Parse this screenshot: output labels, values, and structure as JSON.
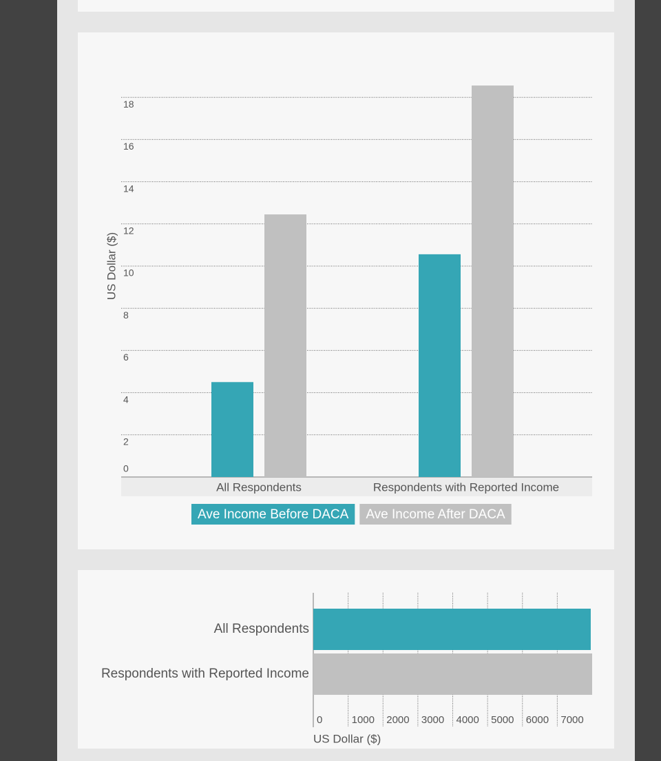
{
  "chart_data": [
    {
      "type": "bar",
      "y_label": "US Dollar ($)",
      "categories": [
        "All Respondents",
        "Respondents with Reported Income"
      ],
      "series": [
        {
          "name": "Ave Income Before DACA",
          "color": "#35a6b5",
          "values": [
            4.5,
            10.56
          ]
        },
        {
          "name": "Ave Income After DACA",
          "color": "#c0c0c0",
          "values": [
            12.45,
            18.56
          ]
        }
      ],
      "ylim": [
        0,
        19
      ],
      "yticks": [
        0,
        2,
        4,
        6,
        8,
        10,
        12,
        14,
        16,
        18
      ],
      "grid": true
    },
    {
      "type": "hbar",
      "x_label": "US Dollar ($)",
      "categories": [
        "All Respondents",
        "Respondents with Reported Income"
      ],
      "values": [
        7960,
        8000
      ],
      "colors": [
        "#35a6b5",
        "#c0c0c0"
      ],
      "xlim": [
        0,
        8000
      ],
      "xticks": [
        0,
        1000,
        2000,
        3000,
        4000,
        5000,
        6000,
        7000
      ],
      "grid": true
    }
  ]
}
